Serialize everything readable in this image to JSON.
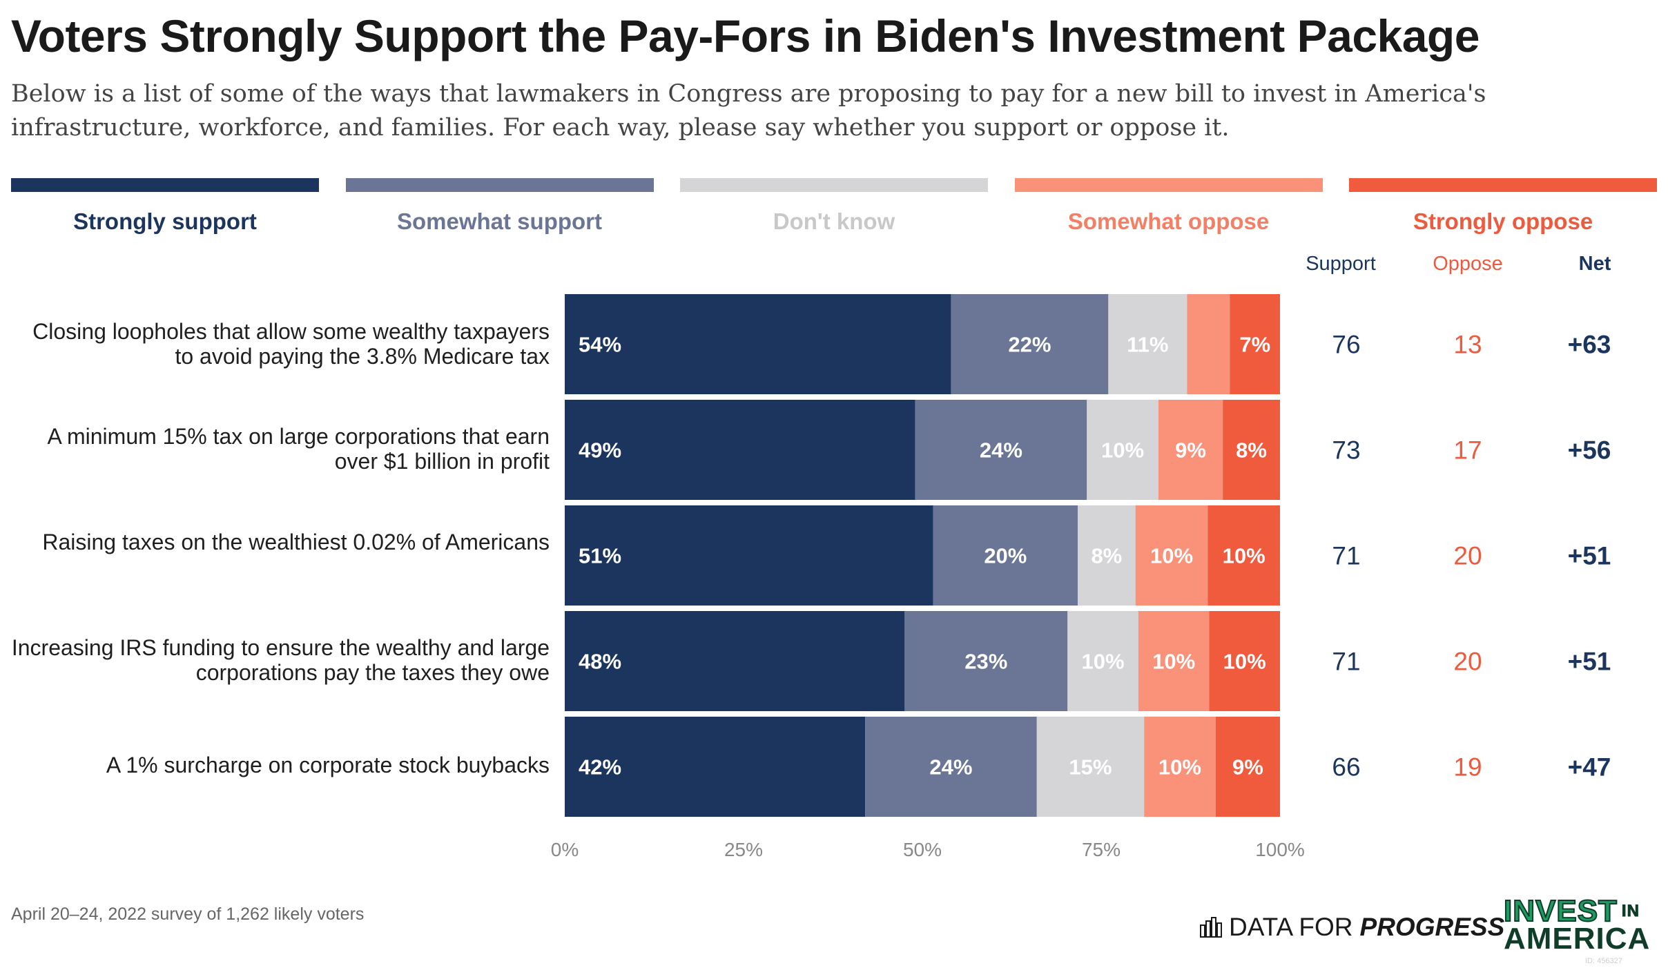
{
  "header": {
    "title": "Voters Strongly Support the Pay-Fors in Biden's Investment Package",
    "subtitle": "Below is a list of some of the ways that lawmakers in Congress are proposing to pay for a new bill to invest in America's infrastructure, workforce, and families. For each way, please say whether you support or oppose it."
  },
  "legend": [
    {
      "label": "Strongly support",
      "color": "#1b355f",
      "text_color": "#1b355f"
    },
    {
      "label": "Somewhat support",
      "color": "#6b7696",
      "text_color": "#6b7696"
    },
    {
      "label": "Don't know",
      "color": "#d5d5d7",
      "text_color": "#c8c8ca"
    },
    {
      "label": "Somewhat oppose",
      "color": "#fa9179",
      "text_color": "#f47f64"
    },
    {
      "label": "Strongly oppose",
      "color": "#f05a3d",
      "text_color": "#ee5a3e"
    }
  ],
  "summary_headers": {
    "support": "Support",
    "oppose": "Oppose",
    "net": "Net"
  },
  "chart_data": {
    "type": "bar",
    "orientation": "horizontal",
    "stacked": true,
    "xlim": [
      0,
      100
    ],
    "x_ticks": [
      "0%",
      "25%",
      "50%",
      "75%",
      "100%"
    ],
    "categories": [
      "Closing loopholes that allow some wealthy taxpayers to avoid paying the 3.8% Medicare tax",
      "A minimum 15% tax on large corporations that earn over $1 billion in profit",
      "Raising taxes on the wealthiest 0.02% of Americans",
      "Increasing IRS funding to ensure the wealthy and large corporations pay the taxes they owe",
      "A 1% surcharge on corporate stock buybacks"
    ],
    "series": [
      {
        "name": "Strongly support",
        "values": [
          54,
          49,
          51,
          48,
          42
        ],
        "labels": [
          "54%",
          "49%",
          "51%",
          "48%",
          "42%"
        ]
      },
      {
        "name": "Somewhat support",
        "values": [
          22,
          24,
          20,
          23,
          24
        ],
        "labels": [
          "22%",
          "24%",
          "20%",
          "23%",
          "24%"
        ]
      },
      {
        "name": "Don't know",
        "values": [
          11,
          10,
          8,
          10,
          15
        ],
        "labels": [
          "11%",
          "10%",
          "8%",
          "10%",
          "15%"
        ]
      },
      {
        "name": "Somewhat oppose",
        "values": [
          6,
          9,
          10,
          10,
          10
        ],
        "labels": [
          "",
          "9%",
          "10%",
          "10%",
          "10%"
        ]
      },
      {
        "name": "Strongly oppose",
        "values": [
          7,
          8,
          10,
          10,
          9
        ],
        "labels": [
          "7%",
          "8%",
          "10%",
          "10%",
          "9%"
        ]
      }
    ],
    "summary": {
      "support": [
        "76",
        "73",
        "71",
        "71",
        "66"
      ],
      "oppose": [
        "13",
        "17",
        "20",
        "20",
        "19"
      ],
      "net": [
        "+63",
        "+56",
        "+51",
        "+51",
        "+47"
      ]
    }
  },
  "footer": {
    "note": "April 20–24, 2022 survey of 1,262 likely voters",
    "dfp_plain": "DATA FOR",
    "dfp_emph": "PROGRESS",
    "iia_line1": "INVEST",
    "iia_in": "IN",
    "iia_line2": "AMERICA",
    "watermark": "ID: 456327"
  }
}
